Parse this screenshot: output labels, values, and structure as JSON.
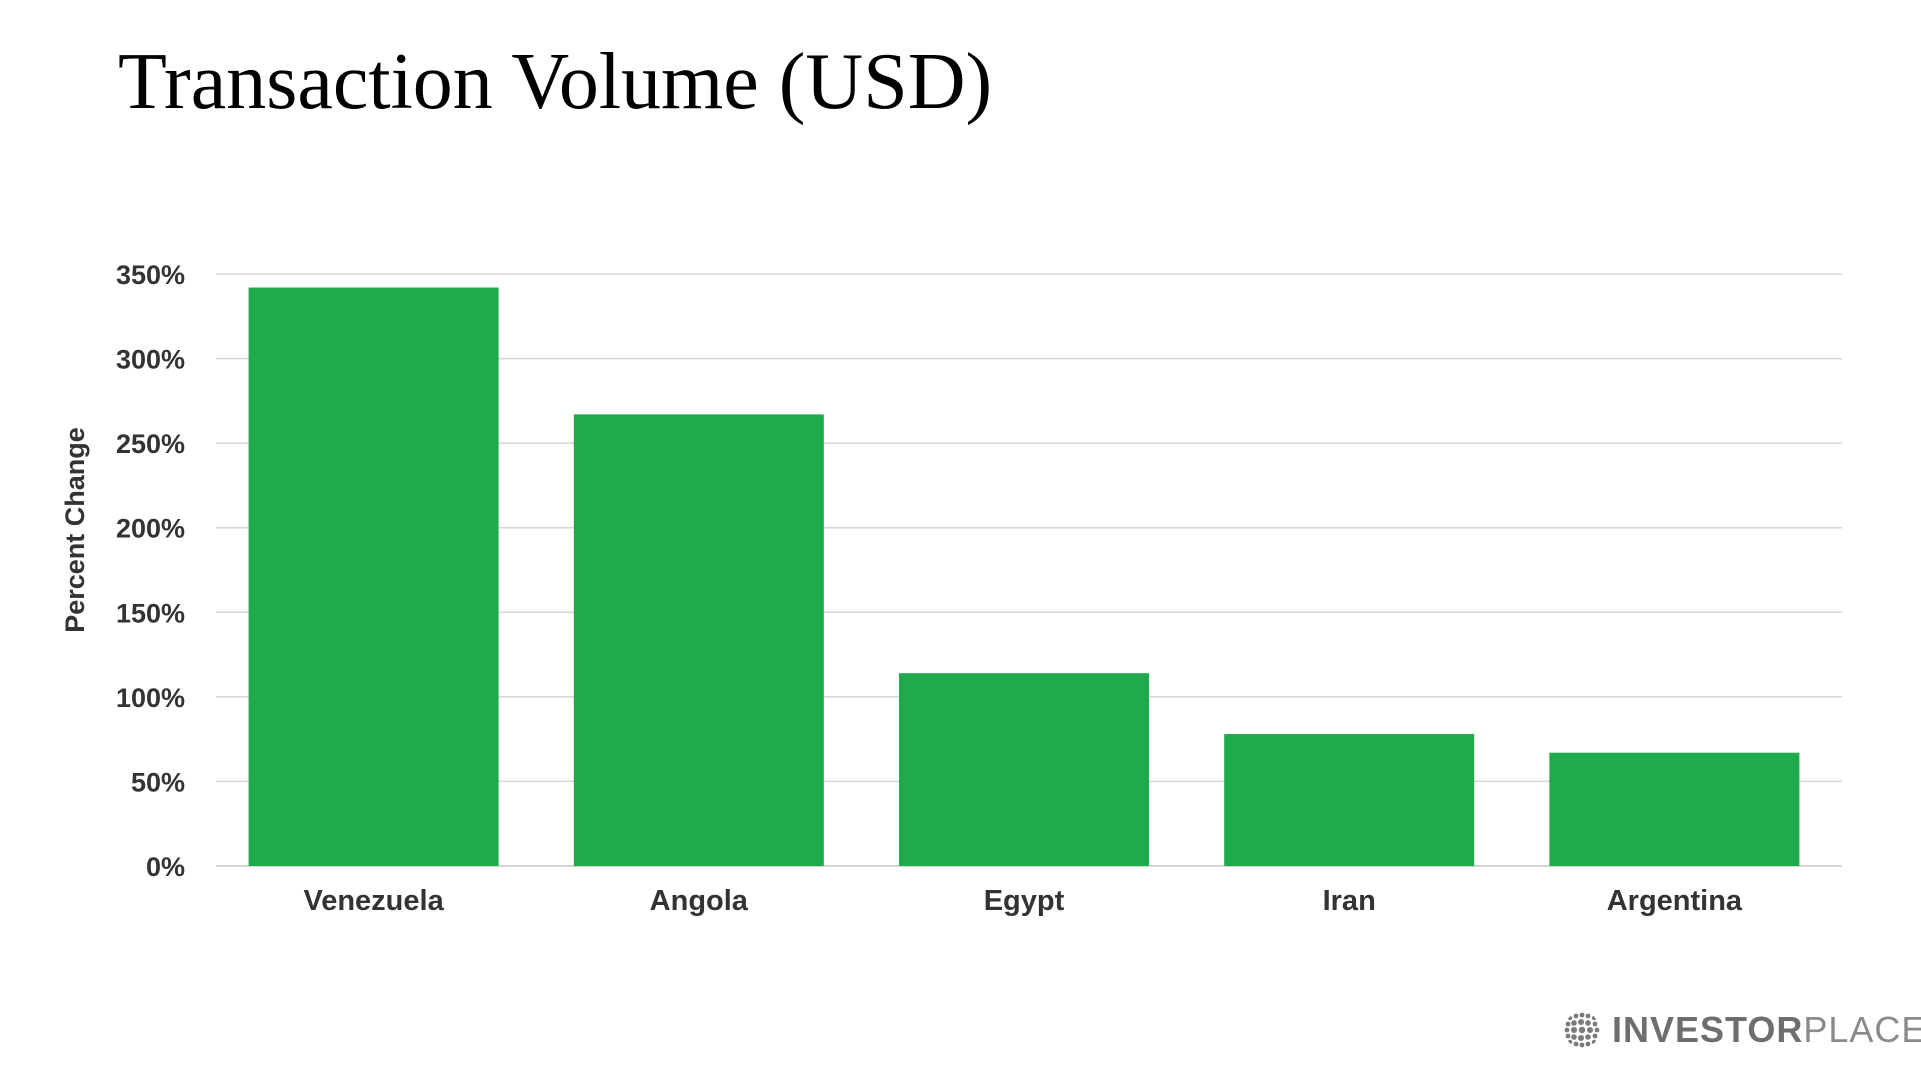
{
  "title": "Transaction Volume (USD)",
  "chart_data": {
    "type": "bar",
    "title": "Transaction Volume (USD)",
    "xlabel": "",
    "ylabel": "Percent Change",
    "categories": [
      "Venezuela",
      "Angola",
      "Egypt",
      "Iran",
      "Argentina"
    ],
    "values": [
      342,
      267,
      114,
      78,
      67
    ],
    "ylim": [
      0,
      350
    ],
    "yticks": [
      0,
      50,
      100,
      150,
      200,
      250,
      300,
      350
    ],
    "ytick_labels": [
      "0%",
      "50%",
      "100%",
      "150%",
      "200%",
      "250%",
      "300%",
      "350%"
    ],
    "bar_color": "#1fab4b",
    "grid": true,
    "grid_color": "#d6d6d6",
    "legend": "none"
  },
  "logo": {
    "text_bold": "INVESTOR",
    "text_light": "PLACE"
  }
}
